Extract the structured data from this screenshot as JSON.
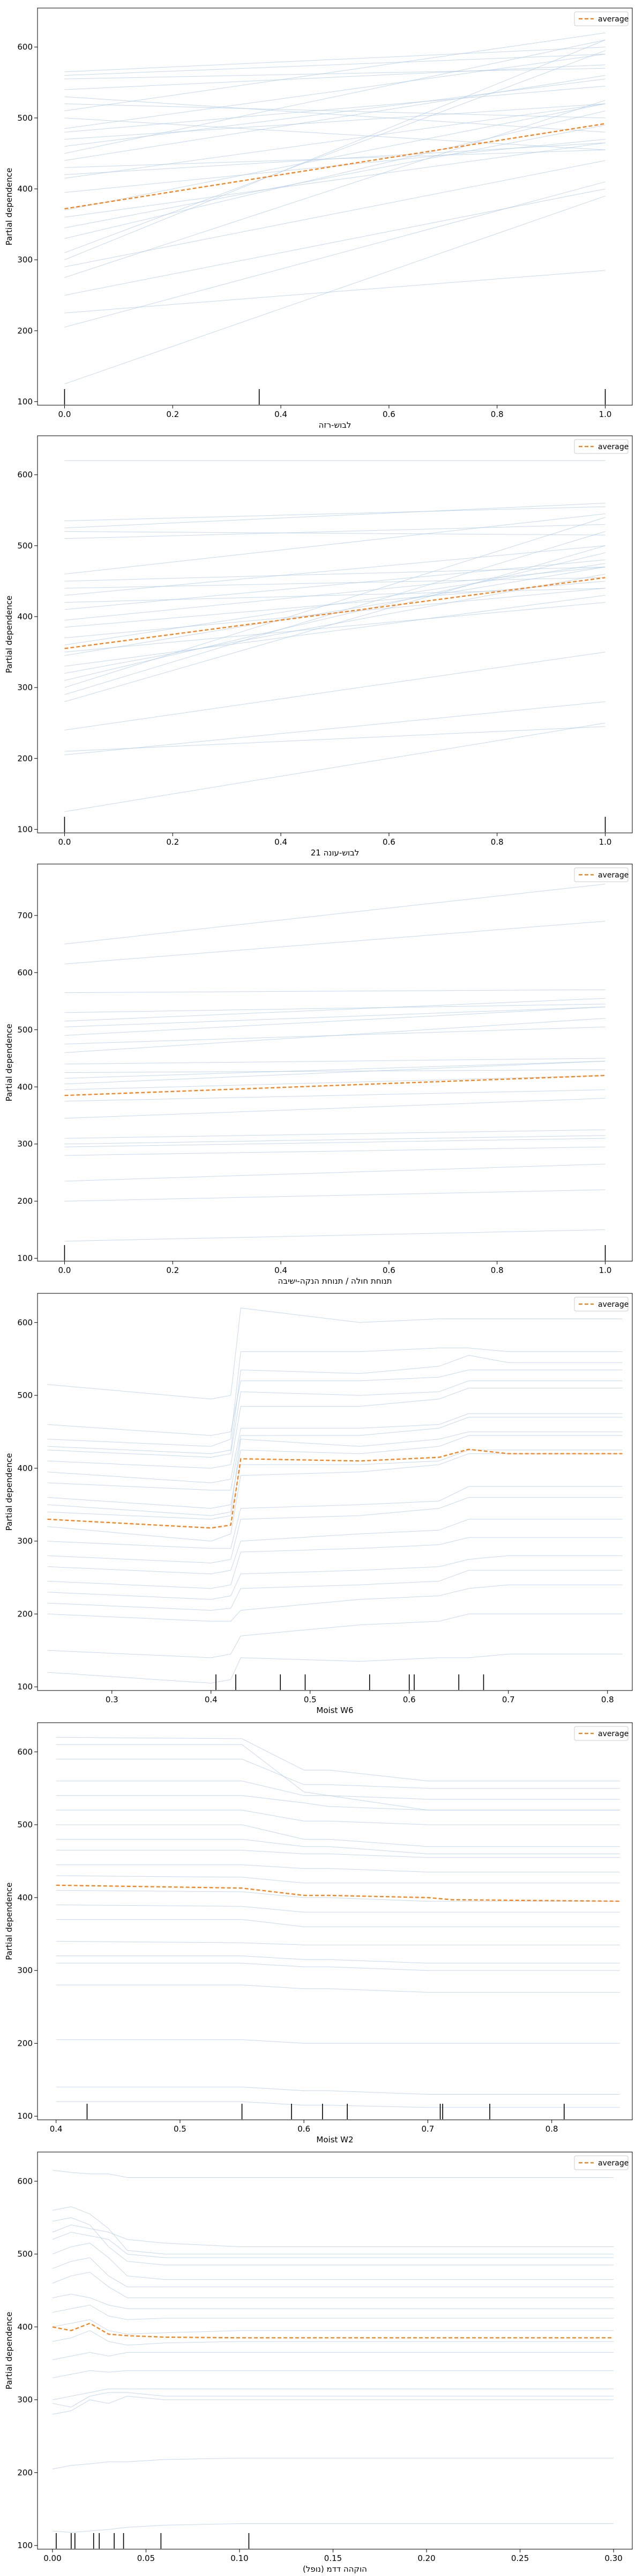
{
  "style": {
    "ice_color": "#aecbe8",
    "average_color": "#ff7f0e",
    "rug_color": "#000000",
    "frame_color": "#000000"
  },
  "legend_label": "average",
  "ylabel": "Partial dependence",
  "chart_data": [
    {
      "type": "line",
      "xlabel": "לבוש-רזה",
      "xlim": [
        -0.05,
        1.05
      ],
      "ylim": [
        95,
        655
      ],
      "xticks": [
        0.0,
        0.2,
        0.4,
        0.6,
        0.8,
        1.0
      ],
      "xtick_labels": [
        "0.0",
        "0.2",
        "0.4",
        "0.6",
        "0.8",
        "1.0"
      ],
      "yticks": [
        100,
        200,
        300,
        400,
        500,
        600
      ],
      "ytick_labels": [
        "100",
        "200",
        "300",
        "400",
        "500",
        "600"
      ],
      "rug": [
        0.0,
        0.36,
        1.0
      ],
      "x": [
        0.0,
        1.0
      ],
      "ice": [
        [
          125,
          390
        ],
        [
          205,
          410
        ],
        [
          300,
          610
        ],
        [
          310,
          595
        ],
        [
          275,
          525
        ],
        [
          330,
          510
        ],
        [
          345,
          490
        ],
        [
          360,
          465
        ],
        [
          395,
          470
        ],
        [
          420,
          465
        ],
        [
          430,
          455
        ],
        [
          440,
          560
        ],
        [
          450,
          610
        ],
        [
          460,
          555
        ],
        [
          470,
          520
        ],
        [
          480,
          545
        ],
        [
          485,
          590
        ],
        [
          500,
          455
        ],
        [
          510,
          620
        ],
        [
          520,
          500
        ],
        [
          530,
          480
        ],
        [
          540,
          575
        ],
        [
          555,
          570
        ],
        [
          560,
          590
        ],
        [
          565,
          600
        ],
        [
          370,
          520
        ],
        [
          290,
          440
        ],
        [
          250,
          400
        ],
        [
          415,
          520
        ],
        [
          225,
          285
        ]
      ],
      "average": [
        372,
        492
      ]
    },
    {
      "type": "line",
      "xlabel": "21 לבוש-עונה",
      "xlim": [
        -0.05,
        1.05
      ],
      "ylim": [
        95,
        655
      ],
      "xticks": [
        0.0,
        0.2,
        0.4,
        0.6,
        0.8,
        1.0
      ],
      "xtick_labels": [
        "0.0",
        "0.2",
        "0.4",
        "0.6",
        "0.8",
        "1.0"
      ],
      "yticks": [
        100,
        200,
        300,
        400,
        500,
        600
      ],
      "ytick_labels": [
        "100",
        "200",
        "300",
        "400",
        "500",
        "600"
      ],
      "rug": [
        0.0,
        1.0
      ],
      "x": [
        0.0,
        1.0
      ],
      "ice": [
        [
          125,
          250
        ],
        [
          205,
          280
        ],
        [
          280,
          500
        ],
        [
          290,
          520
        ],
        [
          300,
          540
        ],
        [
          310,
          490
        ],
        [
          320,
          460
        ],
        [
          330,
          430
        ],
        [
          345,
          470
        ],
        [
          360,
          475
        ],
        [
          370,
          440
        ],
        [
          385,
          450
        ],
        [
          395,
          470
        ],
        [
          410,
          480
        ],
        [
          420,
          440
        ],
        [
          430,
          500
        ],
        [
          440,
          455
        ],
        [
          450,
          470
        ],
        [
          460,
          545
        ],
        [
          510,
          530
        ],
        [
          520,
          515
        ],
        [
          525,
          560
        ],
        [
          535,
          555
        ],
        [
          620,
          620
        ],
        [
          350,
          420
        ],
        [
          240,
          350
        ],
        [
          210,
          245
        ]
      ],
      "average": [
        355,
        455
      ]
    },
    {
      "type": "line",
      "xlabel": "תנוחת חולה / תנוחת הנקה-ישיבה",
      "xlim": [
        -0.05,
        1.05
      ],
      "ylim": [
        95,
        790
      ],
      "xticks": [
        0.0,
        0.2,
        0.4,
        0.6,
        0.8,
        1.0
      ],
      "xtick_labels": [
        "0.0",
        "0.2",
        "0.4",
        "0.6",
        "0.8",
        "1.0"
      ],
      "yticks": [
        100,
        200,
        300,
        400,
        500,
        600,
        700
      ],
      "ytick_labels": [
        "100",
        "200",
        "300",
        "400",
        "500",
        "600",
        "700"
      ],
      "rug": [
        0.0,
        1.0
      ],
      "x": [
        0.0,
        1.0
      ],
      "ice": [
        [
          130,
          150
        ],
        [
          200,
          220
        ],
        [
          235,
          265
        ],
        [
          280,
          295
        ],
        [
          295,
          310
        ],
        [
          300,
          315
        ],
        [
          310,
          325
        ],
        [
          345,
          380
        ],
        [
          375,
          395
        ],
        [
          395,
          420
        ],
        [
          405,
          445
        ],
        [
          415,
          445
        ],
        [
          425,
          430
        ],
        [
          440,
          450
        ],
        [
          460,
          520
        ],
        [
          475,
          505
        ],
        [
          490,
          540
        ],
        [
          505,
          540
        ],
        [
          515,
          555
        ],
        [
          530,
          545
        ],
        [
          565,
          570
        ],
        [
          615,
          690
        ],
        [
          650,
          755
        ]
      ],
      "average": [
        385,
        420
      ]
    },
    {
      "type": "line",
      "xlabel": "Moist W6",
      "xlim": [
        0.225,
        0.825
      ],
      "ylim": [
        95,
        640
      ],
      "xticks": [
        0.3,
        0.4,
        0.5,
        0.6,
        0.7,
        0.8
      ],
      "xtick_labels": [
        "0.3",
        "0.4",
        "0.5",
        "0.6",
        "0.7",
        "0.8"
      ],
      "yticks": [
        100,
        200,
        300,
        400,
        500,
        600
      ],
      "ytick_labels": [
        "100",
        "200",
        "300",
        "400",
        "500",
        "600"
      ],
      "rug": [
        0.405,
        0.425,
        0.47,
        0.495,
        0.56,
        0.6,
        0.605,
        0.65,
        0.675
      ],
      "x": [
        0.235,
        0.4,
        0.42,
        0.43,
        0.55,
        0.63,
        0.66,
        0.7,
        0.815
      ],
      "ice": [
        [
          120,
          105,
          110,
          140,
          135,
          140,
          140,
          145,
          145
        ],
        [
          150,
          140,
          145,
          170,
          185,
          190,
          200,
          200,
          200
        ],
        [
          200,
          190,
          190,
          205,
          220,
          225,
          235,
          240,
          240
        ],
        [
          215,
          205,
          208,
          235,
          240,
          245,
          260,
          260,
          260
        ],
        [
          230,
          220,
          225,
          255,
          260,
          265,
          275,
          280,
          280
        ],
        [
          245,
          235,
          240,
          285,
          290,
          295,
          305,
          305,
          305
        ],
        [
          265,
          255,
          260,
          300,
          310,
          315,
          330,
          330,
          330
        ],
        [
          280,
          270,
          275,
          330,
          335,
          345,
          360,
          360,
          360
        ],
        [
          300,
          290,
          290,
          345,
          350,
          355,
          375,
          375,
          375
        ],
        [
          320,
          300,
          310,
          390,
          395,
          405,
          420,
          420,
          420
        ],
        [
          340,
          330,
          335,
          405,
          405,
          410,
          425,
          425,
          425
        ],
        [
          360,
          345,
          350,
          425,
          420,
          430,
          445,
          445,
          445
        ],
        [
          380,
          370,
          370,
          445,
          445,
          455,
          470,
          470,
          470
        ],
        [
          395,
          380,
          385,
          455,
          455,
          460,
          475,
          475,
          475
        ],
        [
          410,
          400,
          405,
          485,
          485,
          495,
          510,
          510,
          510
        ],
        [
          425,
          415,
          420,
          505,
          500,
          505,
          520,
          520,
          520
        ],
        [
          430,
          420,
          425,
          535,
          530,
          540,
          555,
          545,
          545
        ],
        [
          440,
          430,
          440,
          560,
          560,
          565,
          565,
          560,
          560
        ],
        [
          515,
          495,
          500,
          620,
          600,
          605,
          605,
          605,
          605
        ],
        [
          460,
          445,
          450,
          520,
          520,
          525,
          535,
          535,
          535
        ],
        [
          350,
          335,
          340,
          440,
          430,
          440,
          450,
          450,
          450
        ]
      ],
      "average": [
        330,
        318,
        322,
        413,
        410,
        415,
        426,
        420,
        420
      ]
    },
    {
      "type": "line",
      "xlabel": "Moist W2",
      "xlim": [
        0.385,
        0.865
      ],
      "ylim": [
        95,
        640
      ],
      "xticks": [
        0.4,
        0.5,
        0.6,
        0.7,
        0.8
      ],
      "xtick_labels": [
        "0.4",
        "0.5",
        "0.6",
        "0.7",
        "0.8"
      ],
      "yticks": [
        100,
        200,
        300,
        400,
        500,
        600
      ],
      "ytick_labels": [
        "100",
        "200",
        "300",
        "400",
        "500",
        "600"
      ],
      "rug": [
        0.425,
        0.55,
        0.59,
        0.615,
        0.635,
        0.71,
        0.712,
        0.75,
        0.81
      ],
      "x": [
        0.4,
        0.55,
        0.6,
        0.62,
        0.7,
        0.72,
        0.855
      ],
      "ice": [
        [
          120,
          120,
          115,
          115,
          112,
          112,
          112
        ],
        [
          140,
          140,
          135,
          135,
          130,
          130,
          130
        ],
        [
          205,
          205,
          200,
          200,
          200,
          200,
          200
        ],
        [
          280,
          280,
          275,
          275,
          270,
          270,
          270
        ],
        [
          310,
          310,
          305,
          305,
          300,
          300,
          300
        ],
        [
          320,
          320,
          315,
          315,
          310,
          310,
          310
        ],
        [
          340,
          338,
          335,
          335,
          335,
          335,
          335
        ],
        [
          370,
          370,
          360,
          360,
          360,
          360,
          360
        ],
        [
          390,
          388,
          380,
          380,
          380,
          380,
          380
        ],
        [
          410,
          408,
          400,
          400,
          395,
          395,
          395
        ],
        [
          430,
          428,
          420,
          420,
          420,
          420,
          420
        ],
        [
          445,
          445,
          440,
          440,
          435,
          435,
          435
        ],
        [
          465,
          465,
          460,
          460,
          455,
          455,
          455
        ],
        [
          480,
          480,
          470,
          470,
          460,
          460,
          460
        ],
        [
          500,
          500,
          480,
          480,
          470,
          470,
          470
        ],
        [
          520,
          520,
          505,
          505,
          500,
          500,
          500
        ],
        [
          540,
          540,
          530,
          525,
          520,
          520,
          520
        ],
        [
          560,
          560,
          540,
          540,
          535,
          535,
          535
        ],
        [
          590,
          590,
          555,
          555,
          550,
          550,
          550
        ],
        [
          620,
          618,
          575,
          575,
          560,
          560,
          560
        ],
        [
          610,
          610,
          545,
          540,
          520,
          520,
          520
        ]
      ],
      "average": [
        417,
        413,
        403,
        403,
        400,
        397,
        395
      ]
    },
    {
      "type": "line",
      "xlabel": "(נופל) הוקהה דדמ",
      "xlim": [
        -0.008,
        0.31
      ],
      "ylim": [
        95,
        640
      ],
      "xticks": [
        0.0,
        0.05,
        0.1,
        0.15,
        0.2,
        0.25,
        0.3
      ],
      "xtick_labels": [
        "0.00",
        "0.05",
        "0.10",
        "0.15",
        "0.20",
        "0.25",
        "0.30"
      ],
      "yticks": [
        100,
        200,
        300,
        400,
        500,
        600
      ],
      "ytick_labels": [
        "100",
        "200",
        "300",
        "400",
        "500",
        "600"
      ],
      "rug": [
        0.002,
        0.01,
        0.012,
        0.022,
        0.025,
        0.033,
        0.038,
        0.058,
        0.105
      ],
      "x": [
        0.0,
        0.01,
        0.02,
        0.03,
        0.04,
        0.06,
        0.1,
        0.15,
        0.3
      ],
      "ice": [
        [
          120,
          118,
          120,
          122,
          125,
          128,
          130,
          130,
          130
        ],
        [
          205,
          210,
          212,
          215,
          215,
          218,
          220,
          220,
          220
        ],
        [
          280,
          285,
          300,
          295,
          305,
          300,
          300,
          300,
          300
        ],
        [
          295,
          290,
          305,
          310,
          310,
          305,
          305,
          305,
          305
        ],
        [
          300,
          305,
          310,
          315,
          315,
          315,
          315,
          315,
          315
        ],
        [
          330,
          335,
          340,
          338,
          340,
          340,
          340,
          340,
          340
        ],
        [
          355,
          360,
          365,
          360,
          365,
          365,
          365,
          365,
          365
        ],
        [
          380,
          385,
          395,
          380,
          375,
          378,
          380,
          380,
          380
        ],
        [
          400,
          405,
          410,
          395,
          390,
          392,
          395,
          395,
          395
        ],
        [
          420,
          425,
          430,
          415,
          410,
          412,
          412,
          412,
          412
        ],
        [
          440,
          445,
          440,
          430,
          425,
          425,
          425,
          425,
          425
        ],
        [
          460,
          470,
          475,
          455,
          440,
          440,
          440,
          440,
          440
        ],
        [
          480,
          490,
          495,
          470,
          455,
          455,
          455,
          455,
          455
        ],
        [
          500,
          510,
          515,
          495,
          470,
          465,
          465,
          465,
          465
        ],
        [
          520,
          530,
          525,
          520,
          500,
          495,
          495,
          495,
          495
        ],
        [
          530,
          540,
          535,
          530,
          520,
          515,
          510,
          510,
          510
        ],
        [
          545,
          550,
          540,
          510,
          490,
          485,
          485,
          485,
          485
        ],
        [
          560,
          565,
          555,
          535,
          505,
          500,
          500,
          500,
          500
        ],
        [
          615,
          612,
          610,
          610,
          605,
          605,
          605,
          605,
          605
        ]
      ],
      "average": [
        400,
        395,
        405,
        390,
        388,
        386,
        385,
        385,
        385
      ]
    }
  ]
}
